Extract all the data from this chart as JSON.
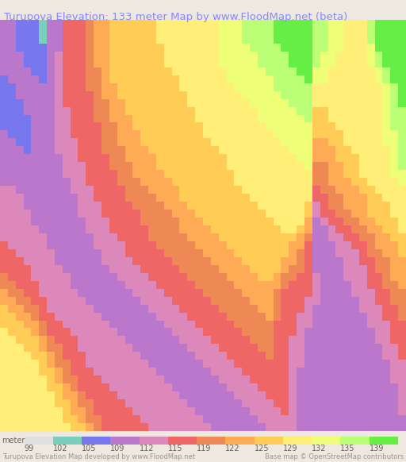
{
  "title": "Turupova Elevation: 133 meter Map by www.FloodMap.net (beta)",
  "title_color": "#8888ff",
  "title_fontsize": 9.5,
  "background_color": "#ede8e0",
  "colorbar_labels": [
    "99",
    "102",
    "105",
    "109",
    "112",
    "115",
    "119",
    "122",
    "125",
    "129",
    "132",
    "135",
    "139"
  ],
  "colorbar_colors": [
    "#e0e0e0",
    "#7acfbc",
    "#7777ee",
    "#bb77cc",
    "#dd88bb",
    "#ee6666",
    "#ee8855",
    "#ffaa55",
    "#ffcc55",
    "#ffee77",
    "#eeff77",
    "#bbff77",
    "#66ee44"
  ],
  "footer_left": "Turupova Elevation Map developed by www.FloodMap.net",
  "footer_right": "Base map © OpenStreetMap contributors",
  "footer_fontsize": 6.0,
  "colorbar_tick_fontsize": 7.0,
  "map_colors": {
    "blue": "#6677ee",
    "teal": "#77ccbb",
    "purple": "#aa77cc",
    "mauve": "#cc88bb",
    "red": "#ee6666",
    "salmon": "#ee8855",
    "orange": "#ffaa55",
    "light_orange": "#ffcc66",
    "yellow": "#ffee77",
    "light_yellow": "#ffee99",
    "yellow_green": "#eeff77",
    "light_green": "#bbff77",
    "green": "#66ee44",
    "dark_purple": "#9966aa"
  }
}
